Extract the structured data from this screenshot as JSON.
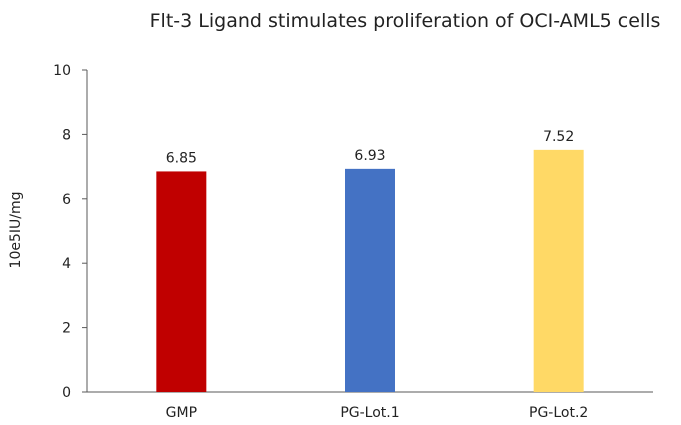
{
  "chart_data": {
    "type": "bar",
    "title": "Flt-3 Ligand stimulates proliferation of OCI-AML5 cells",
    "xlabel": "",
    "ylabel": "10e5IU/mg",
    "categories": [
      "GMP",
      "PG-Lot.1",
      "PG-Lot.2"
    ],
    "values": [
      6.85,
      6.93,
      7.52
    ],
    "value_labels": [
      "6.85",
      "6.93",
      "7.52"
    ],
    "bar_colors": [
      "#C00000",
      "#4472C4",
      "#FFD966"
    ],
    "ylim": [
      0,
      10
    ],
    "yticks": [
      0,
      2,
      4,
      6,
      8,
      10
    ],
    "ytick_labels": [
      "0",
      "2",
      "4",
      "6",
      "8",
      "10"
    ],
    "grid": false,
    "legend": "none",
    "axis_color": "#595959"
  }
}
